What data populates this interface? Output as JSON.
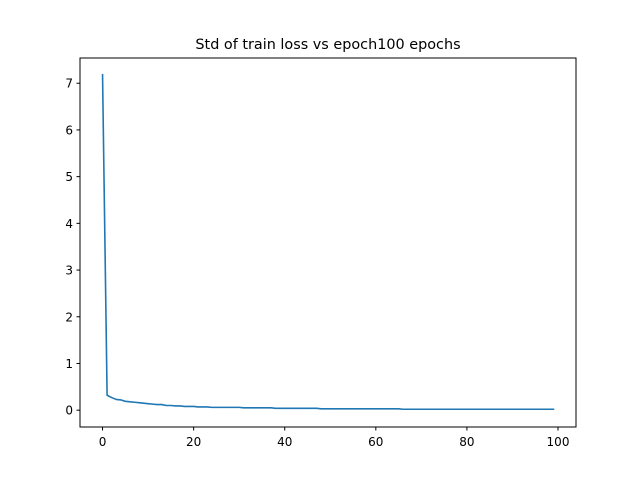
{
  "chart_data": {
    "type": "line",
    "title": "Std of train loss vs epoch100 epochs",
    "xlabel": "",
    "ylabel": "",
    "xlim": [
      -4.95,
      103.95
    ],
    "ylim": [
      -0.36,
      7.54
    ],
    "x_ticks": [
      0,
      20,
      40,
      60,
      80,
      100
    ],
    "y_ticks": [
      0,
      1,
      2,
      3,
      4,
      5,
      6,
      7
    ],
    "x_tick_labels": [
      "0",
      "20",
      "40",
      "60",
      "80",
      "100"
    ],
    "y_tick_labels": [
      "0",
      "1",
      "2",
      "3",
      "4",
      "5",
      "6",
      "7"
    ],
    "grid": false,
    "legend": "none",
    "series": [
      {
        "color": "#1f77b4",
        "x": [
          0,
          1,
          2,
          3,
          4,
          5,
          6,
          7,
          8,
          9,
          10,
          11,
          12,
          13,
          14,
          15,
          16,
          17,
          18,
          19,
          20,
          21,
          22,
          23,
          24,
          25,
          26,
          27,
          28,
          29,
          30,
          31,
          32,
          33,
          34,
          35,
          36,
          37,
          38,
          39,
          40,
          41,
          42,
          43,
          44,
          45,
          46,
          47,
          48,
          49,
          50,
          51,
          52,
          53,
          54,
          55,
          56,
          57,
          58,
          59,
          60,
          61,
          62,
          63,
          64,
          65,
          66,
          67,
          68,
          69,
          70,
          71,
          72,
          73,
          74,
          75,
          76,
          77,
          78,
          79,
          80,
          81,
          82,
          83,
          84,
          85,
          86,
          87,
          88,
          89,
          90,
          91,
          92,
          93,
          94,
          95,
          96,
          97,
          98,
          99
        ],
        "y": [
          7.18,
          0.32,
          0.27,
          0.23,
          0.22,
          0.19,
          0.18,
          0.17,
          0.16,
          0.15,
          0.14,
          0.13,
          0.12,
          0.12,
          0.1,
          0.1,
          0.09,
          0.09,
          0.08,
          0.08,
          0.08,
          0.07,
          0.07,
          0.07,
          0.06,
          0.06,
          0.06,
          0.06,
          0.06,
          0.06,
          0.06,
          0.05,
          0.05,
          0.05,
          0.05,
          0.05,
          0.05,
          0.05,
          0.04,
          0.04,
          0.04,
          0.04,
          0.04,
          0.04,
          0.04,
          0.04,
          0.04,
          0.04,
          0.03,
          0.03,
          0.03,
          0.03,
          0.03,
          0.03,
          0.03,
          0.03,
          0.03,
          0.03,
          0.03,
          0.03,
          0.03,
          0.03,
          0.03,
          0.03,
          0.03,
          0.03,
          0.02,
          0.02,
          0.02,
          0.02,
          0.02,
          0.02,
          0.02,
          0.02,
          0.02,
          0.02,
          0.02,
          0.02,
          0.02,
          0.02,
          0.02,
          0.02,
          0.02,
          0.02,
          0.02,
          0.02,
          0.02,
          0.02,
          0.02,
          0.02,
          0.02,
          0.02,
          0.02,
          0.02,
          0.02,
          0.02,
          0.02,
          0.02,
          0.02,
          0.02
        ]
      }
    ]
  }
}
